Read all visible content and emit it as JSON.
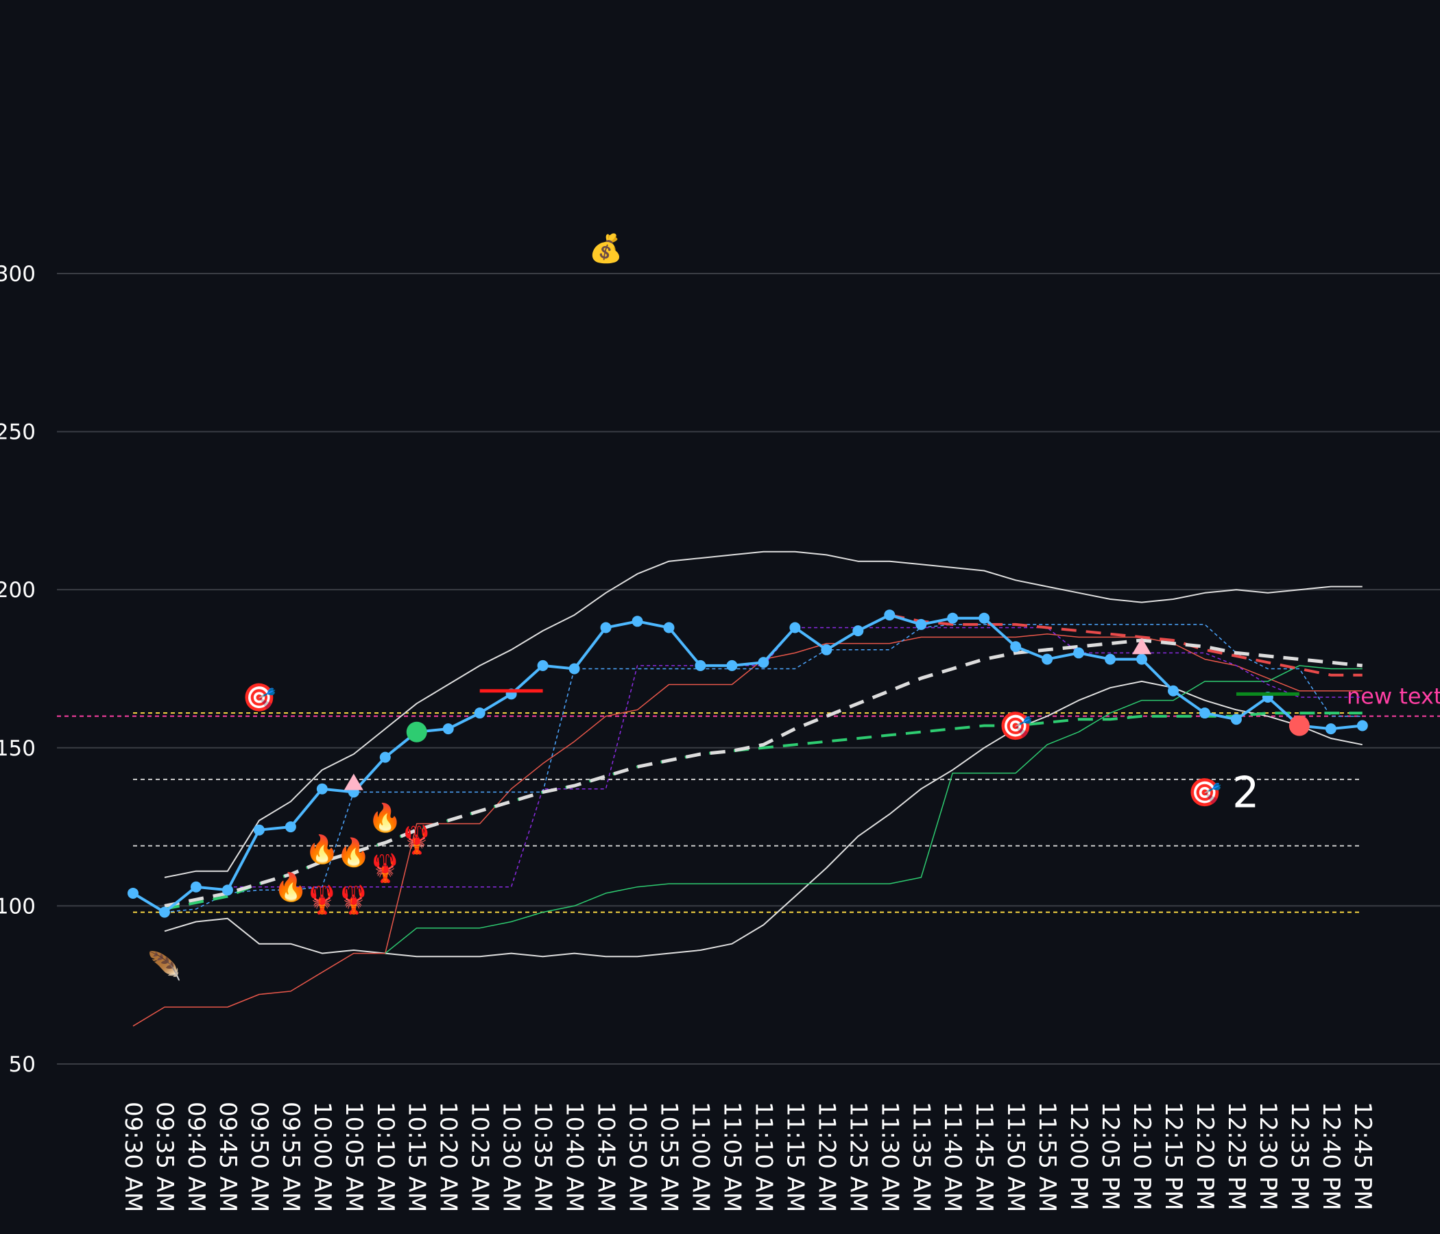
{
  "chart_data": {
    "type": "line",
    "background": "#0d1017",
    "grid": true,
    "ylim": [
      50,
      380
    ],
    "yticks": [
      50,
      100,
      150,
      200,
      250,
      300
    ],
    "categories": [
      "09:30 AM",
      "09:35 AM",
      "09:40 AM",
      "09:45 AM",
      "09:50 AM",
      "09:55 AM",
      "10:00 AM",
      "10:05 AM",
      "10:10 AM",
      "10:15 AM",
      "10:20 AM",
      "10:25 AM",
      "10:30 AM",
      "10:35 AM",
      "10:40 AM",
      "10:45 AM",
      "10:50 AM",
      "10:55 AM",
      "11:00 AM",
      "11:05 AM",
      "11:10 AM",
      "11:15 AM",
      "11:20 AM",
      "11:25 AM",
      "11:30 AM",
      "11:35 AM",
      "11:40 AM",
      "11:45 AM",
      "11:50 AM",
      "11:55 AM",
      "12:00 PM",
      "12:05 PM",
      "12:10 PM",
      "12:15 PM",
      "12:20 PM",
      "12:25 PM",
      "12:30 PM",
      "12:35 PM",
      "12:40 PM",
      "12:45 PM"
    ],
    "series": [
      {
        "color": "#e0e0e0",
        "width": 2,
        "values": [
          null,
          109,
          111,
          111,
          127,
          133,
          143,
          148,
          156,
          164,
          170,
          176,
          181,
          187,
          192,
          199,
          205,
          209,
          210,
          211,
          212,
          212,
          211,
          209,
          209,
          208,
          207,
          206,
          203,
          201,
          199,
          197,
          196,
          197,
          199,
          200,
          199,
          200,
          201,
          201
        ]
      },
      {
        "color": "#e0e0e0",
        "width": 2,
        "values": [
          null,
          92,
          95,
          96,
          88,
          88,
          85,
          86,
          85,
          84,
          84,
          84,
          85,
          84,
          85,
          84,
          84,
          85,
          86,
          88,
          94,
          103,
          112,
          122,
          129,
          137,
          143,
          150,
          156,
          160,
          165,
          169,
          171,
          169,
          165,
          162,
          160,
          157,
          153,
          151
        ]
      },
      {
        "color": "#e8574a",
        "width": 1.5,
        "values": [
          62,
          68,
          68,
          68,
          72,
          73,
          79,
          85,
          85,
          126,
          126,
          126,
          137,
          145,
          152,
          160,
          162,
          170,
          170,
          170,
          178,
          180,
          183,
          183,
          183,
          185,
          185,
          185,
          185,
          186,
          185,
          185,
          185,
          183,
          178,
          176,
          172,
          168,
          168,
          168
        ]
      },
      {
        "color": "#2ecc71",
        "width": 1.5,
        "values": [
          null,
          null,
          null,
          null,
          null,
          null,
          null,
          null,
          85,
          93,
          93,
          93,
          95,
          98,
          100,
          104,
          106,
          107,
          107,
          107,
          107,
          107,
          107,
          107,
          107,
          109,
          142,
          142,
          142,
          151,
          155,
          161,
          165,
          165,
          171,
          171,
          171,
          176,
          175,
          175
        ]
      },
      {
        "color": "#4da6ff",
        "width": 1.5,
        "dash": true,
        "values": [
          null,
          98,
          99,
          104,
          105,
          105,
          106,
          136,
          136,
          136,
          136,
          136,
          136,
          136,
          175,
          175,
          175,
          175,
          175,
          175,
          175,
          175,
          181,
          181,
          181,
          188,
          189,
          189,
          189,
          189,
          189,
          189,
          189,
          189,
          189,
          180,
          175,
          175,
          160,
          160
        ]
      },
      {
        "color": "#8a2be2",
        "width": 1.5,
        "dash": true,
        "values": [
          null,
          null,
          null,
          106,
          106,
          106,
          106,
          106,
          106,
          106,
          106,
          106,
          106,
          137,
          137,
          137,
          176,
          176,
          176,
          176,
          176,
          188,
          188,
          188,
          188,
          188,
          188,
          188,
          188,
          188,
          180,
          180,
          180,
          180,
          180,
          176,
          170,
          166,
          166,
          166
        ]
      },
      {
        "color": "#2ecc71",
        "width": 4,
        "dash": true,
        "values": [
          null,
          99,
          101,
          103,
          107,
          110,
          114,
          117,
          120,
          124,
          127,
          130,
          133,
          136,
          138,
          141,
          144,
          146,
          148,
          149,
          150,
          151,
          152,
          153,
          154,
          155,
          156,
          157,
          157,
          158,
          159,
          159,
          160,
          160,
          160,
          160,
          161,
          161,
          161,
          161
        ]
      },
      {
        "color": "#e84a4a",
        "width": 4,
        "dash": true,
        "values": [
          null,
          null,
          null,
          null,
          null,
          null,
          null,
          null,
          null,
          null,
          null,
          null,
          null,
          null,
          null,
          null,
          null,
          null,
          null,
          null,
          null,
          null,
          null,
          null,
          192,
          190,
          189,
          189,
          189,
          188,
          187,
          186,
          185,
          184,
          181,
          179,
          177,
          175,
          173,
          173
        ]
      },
      {
        "color": "#dddddd",
        "width": 5,
        "dash": true,
        "values": [
          null,
          100,
          102,
          104,
          107,
          110,
          114,
          117,
          120,
          124,
          127,
          130,
          133,
          136,
          138,
          141,
          144,
          146,
          148,
          149,
          151,
          156,
          160,
          164,
          168,
          172,
          175,
          178,
          180,
          181,
          182,
          183,
          184,
          183,
          182,
          180,
          179,
          178,
          177,
          176
        ]
      },
      {
        "color": "#4db8ff",
        "width": 4,
        "markers": true,
        "values": [
          104,
          98,
          106,
          105,
          124,
          125,
          137,
          136,
          147,
          155,
          156,
          161,
          167,
          176,
          175,
          188,
          190,
          188,
          176,
          176,
          177,
          188,
          181,
          187,
          192,
          189,
          191,
          191,
          182,
          178,
          180,
          178,
          178,
          168,
          161,
          159,
          166,
          157,
          156,
          157
        ]
      }
    ],
    "hlines": [
      {
        "value": 161,
        "color": "#f5d442"
      },
      {
        "value": 98,
        "color": "#f5d442"
      },
      {
        "value": 160,
        "color": "#ff3fa4",
        "label": "new text"
      },
      {
        "value": 140,
        "color": "#cccccc"
      },
      {
        "value": 119,
        "color": "#cccccc"
      }
    ],
    "segments": [
      {
        "value": 168,
        "from": "10:25 AM",
        "to": "10:35 AM",
        "color": "#ff1a1a"
      },
      {
        "value": 167,
        "from": "12:25 PM",
        "to": "12:35 PM",
        "color": "#0b8a1e"
      }
    ],
    "dots": [
      {
        "x": "10:15 AM",
        "y": 155,
        "color": "#2ecc71",
        "shape": "circle"
      },
      {
        "x": "12:35 PM",
        "y": 157,
        "color": "#ff5a5a",
        "shape": "circle"
      },
      {
        "x": "10:05 AM",
        "y": 139,
        "color": "#ffb6c8",
        "shape": "triangle"
      },
      {
        "x": "12:10 PM",
        "y": 182,
        "color": "#ffb6c8",
        "shape": "triangle"
      }
    ],
    "icons": [
      {
        "x": "09:50 AM",
        "y": 166,
        "label": "🎯"
      },
      {
        "x": "11:50 AM",
        "y": 157,
        "label": "🎯"
      },
      {
        "x": "12:20 PM",
        "y": 136,
        "label": "🎯",
        "note": "2"
      },
      {
        "x": "10:45 AM",
        "y": 308,
        "label": "💰"
      },
      {
        "x": "09:55 AM",
        "y": 106,
        "label": "🔥"
      },
      {
        "x": "10:00 AM",
        "y": 118,
        "label": "🔥"
      },
      {
        "x": "10:05 AM",
        "y": 117,
        "label": "🔥"
      },
      {
        "x": "10:10 AM",
        "y": 128,
        "label": "🔥"
      },
      {
        "x": "10:00 AM",
        "y": 102,
        "label": "🦞"
      },
      {
        "x": "10:05 AM",
        "y": 102,
        "label": "🦞"
      },
      {
        "x": "10:10 AM",
        "y": 112,
        "label": "🦞"
      },
      {
        "x": "10:15 AM",
        "y": 121,
        "label": "🦞"
      },
      {
        "x": "09:35 AM",
        "y": 81,
        "label": "🪶"
      }
    ]
  }
}
